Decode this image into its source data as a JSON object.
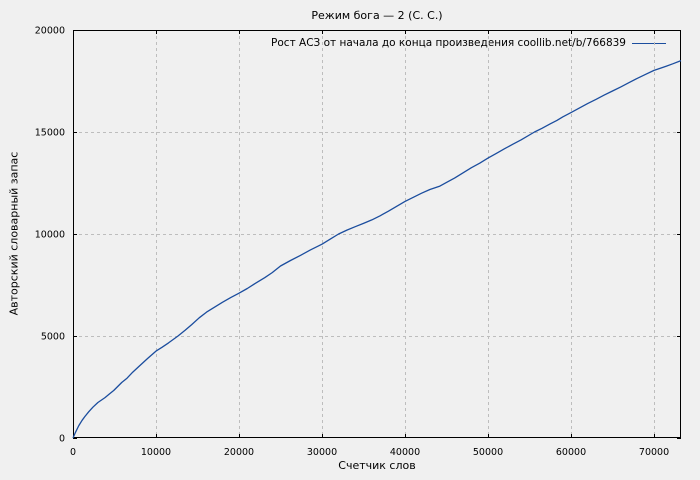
{
  "colors": {
    "background": "#f0f0f0",
    "line": "#1b4d9e",
    "grid": "#bdbdbd",
    "border": "#000000",
    "text": "#000000"
  },
  "chart_data": {
    "type": "line",
    "title": "Режим бога — 2 (С. С.)",
    "xlabel": "Счетчик слов",
    "ylabel": "Авторский словарный запас",
    "xlim": [
      0,
      73250
    ],
    "ylim": [
      0,
      20000
    ],
    "xticks": [
      0,
      10000,
      20000,
      30000,
      40000,
      50000,
      60000,
      70000
    ],
    "yticks": [
      0,
      5000,
      10000,
      15000,
      20000
    ],
    "grid": "dashed-major",
    "legend_position": "top-right-inside",
    "series": [
      {
        "name": "Рост АСЗ от начала до конца произведения coollib.net/b/766839",
        "color": "#1b4d9e",
        "points": [
          [
            0,
            0
          ],
          [
            300,
            280
          ],
          [
            700,
            610
          ],
          [
            1100,
            870
          ],
          [
            1450,
            1060
          ],
          [
            1900,
            1290
          ],
          [
            2400,
            1510
          ],
          [
            3000,
            1740
          ],
          [
            3850,
            1980
          ],
          [
            4400,
            2160
          ],
          [
            4900,
            2330
          ],
          [
            5870,
            2720
          ],
          [
            6500,
            2930
          ],
          [
            7200,
            3230
          ],
          [
            8000,
            3530
          ],
          [
            9000,
            3900
          ],
          [
            10000,
            4260
          ],
          [
            10700,
            4440
          ],
          [
            11500,
            4660
          ],
          [
            12650,
            5000
          ],
          [
            13500,
            5280
          ],
          [
            14300,
            5560
          ],
          [
            15200,
            5890
          ],
          [
            16100,
            6170
          ],
          [
            17000,
            6400
          ],
          [
            18000,
            6650
          ],
          [
            19000,
            6880
          ],
          [
            20000,
            7100
          ],
          [
            21000,
            7330
          ],
          [
            22000,
            7590
          ],
          [
            23100,
            7860
          ],
          [
            24000,
            8110
          ],
          [
            25000,
            8430
          ],
          [
            26200,
            8700
          ],
          [
            27400,
            8950
          ],
          [
            28600,
            9220
          ],
          [
            30000,
            9500
          ],
          [
            31000,
            9750
          ],
          [
            32000,
            10000
          ],
          [
            33000,
            10190
          ],
          [
            34000,
            10360
          ],
          [
            35000,
            10520
          ],
          [
            36000,
            10690
          ],
          [
            37000,
            10890
          ],
          [
            38000,
            11120
          ],
          [
            39000,
            11360
          ],
          [
            40000,
            11600
          ],
          [
            41000,
            11800
          ],
          [
            42000,
            12000
          ],
          [
            43000,
            12180
          ],
          [
            44200,
            12350
          ],
          [
            45000,
            12530
          ],
          [
            46000,
            12750
          ],
          [
            47000,
            13000
          ],
          [
            48000,
            13250
          ],
          [
            49000,
            13470
          ],
          [
            50000,
            13720
          ],
          [
            51000,
            13950
          ],
          [
            52000,
            14180
          ],
          [
            53000,
            14400
          ],
          [
            54000,
            14620
          ],
          [
            55600,
            15000
          ],
          [
            56500,
            15180
          ],
          [
            57500,
            15400
          ],
          [
            58300,
            15570
          ],
          [
            59000,
            15740
          ],
          [
            60000,
            15950
          ],
          [
            61000,
            16170
          ],
          [
            62000,
            16390
          ],
          [
            63000,
            16600
          ],
          [
            64000,
            16810
          ],
          [
            65000,
            17010
          ],
          [
            66000,
            17210
          ],
          [
            67000,
            17420
          ],
          [
            68000,
            17630
          ],
          [
            69000,
            17830
          ],
          [
            70000,
            18020
          ],
          [
            70800,
            18130
          ],
          [
            71500,
            18230
          ],
          [
            72300,
            18350
          ],
          [
            73250,
            18500
          ]
        ]
      }
    ]
  }
}
